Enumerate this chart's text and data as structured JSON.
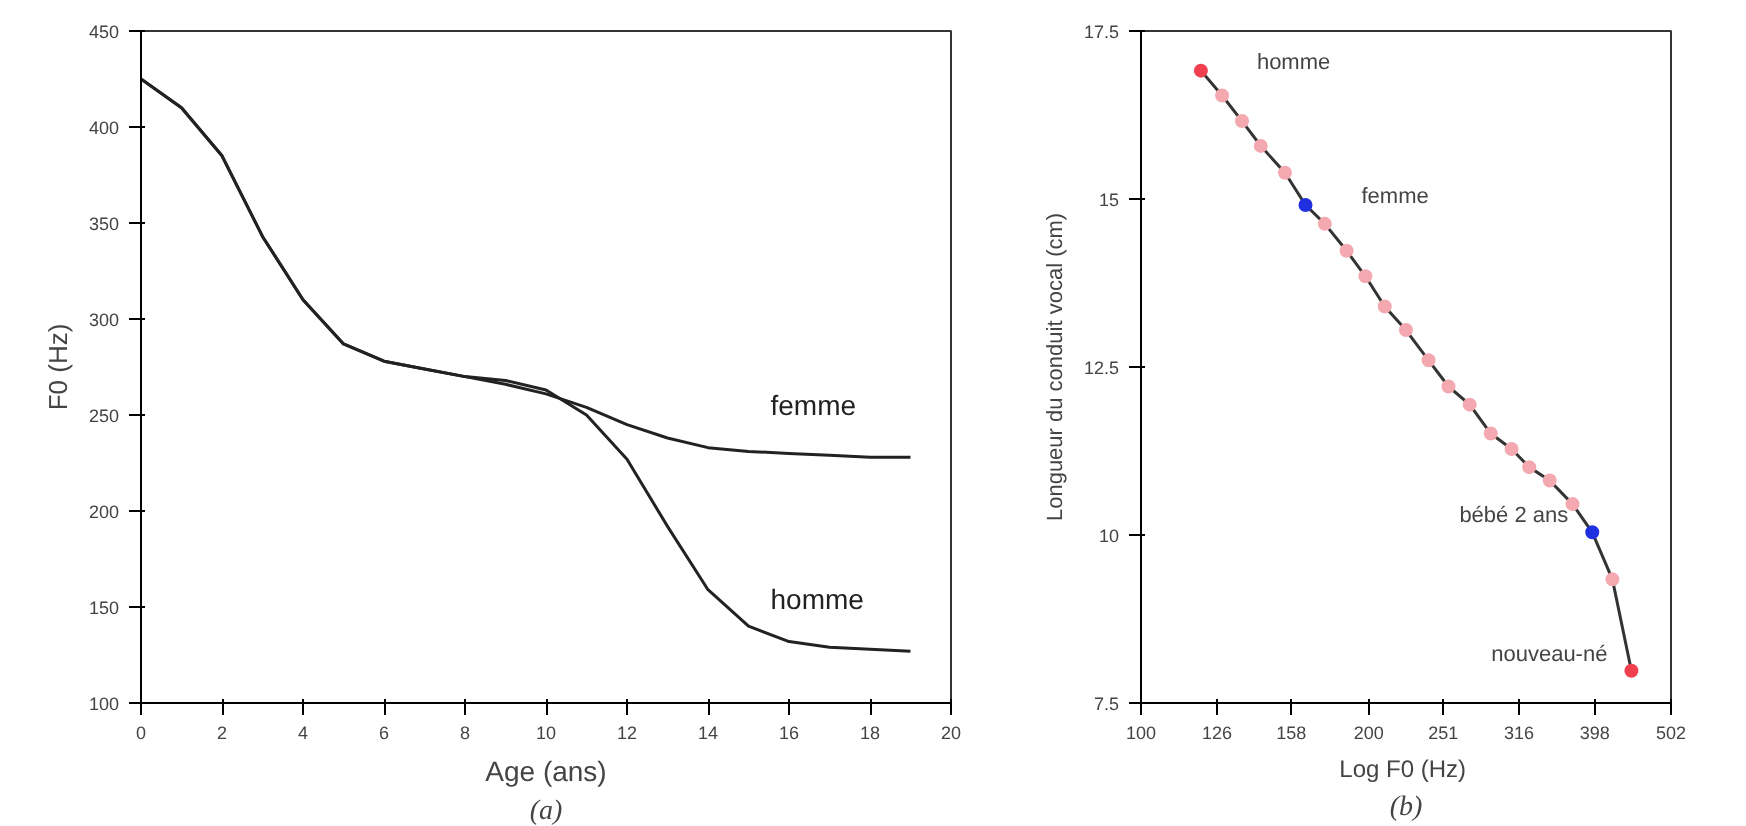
{
  "chart_data": [
    {
      "type": "line",
      "xlabel": "Age (ans)",
      "ylabel": "F0 (Hz)",
      "xlim": [
        0,
        20
      ],
      "ylim": [
        100,
        450
      ],
      "xticks": [
        0,
        2,
        4,
        6,
        8,
        10,
        12,
        14,
        16,
        18,
        20
      ],
      "yticks": [
        100,
        150,
        200,
        250,
        300,
        350,
        400,
        450
      ],
      "grid": false,
      "marker": "none",
      "line_style": "solid",
      "x": [
        0,
        1,
        2,
        3,
        4,
        5,
        6,
        7,
        8,
        9,
        10,
        11,
        12,
        13,
        14,
        15,
        16,
        17,
        18,
        19
      ],
      "series": [
        {
          "name": "femme",
          "color": "#222222",
          "values": [
            425,
            410,
            385,
            343,
            310,
            287,
            278,
            274,
            270,
            266,
            261,
            254,
            245,
            238,
            233,
            231,
            230,
            229,
            228,
            228
          ]
        },
        {
          "name": "homme",
          "color": "#222222",
          "values": [
            425,
            410,
            385,
            343,
            310,
            287,
            278,
            274,
            270,
            268,
            263,
            250,
            227,
            192,
            159,
            140,
            132,
            129,
            128,
            127
          ]
        }
      ],
      "annotations": [
        "(a)"
      ]
    },
    {
      "type": "line",
      "xlabel": "Log F0  (Hz)",
      "ylabel": "Longueur du conduit vocal (cm)",
      "log": "x",
      "xlim": [
        100,
        502
      ],
      "ylim": [
        7.5,
        17.5
      ],
      "xticks": [
        100,
        126,
        158,
        200,
        251,
        316,
        398,
        502
      ],
      "yticks": [
        7.5,
        10,
        12.5,
        15,
        17.5
      ],
      "grid": false,
      "marker": "circle",
      "line_style": "solid",
      "x": [
        120,
        128,
        136,
        144,
        155,
        165,
        175,
        187,
        198,
        210,
        224,
        240,
        255,
        272,
        290,
        309,
        326,
        347,
        372,
        395,
        420,
        445
      ],
      "series": [
        {
          "color": "#333333",
          "values": [
            16.91,
            16.54,
            16.16,
            15.79,
            15.39,
            14.91,
            14.63,
            14.23,
            13.85,
            13.4,
            13.05,
            12.6,
            12.21,
            11.94,
            11.51,
            11.28,
            11.01,
            10.81,
            10.46,
            10.04,
            9.34,
            7.98
          ],
          "colors": [
            "#f04050",
            "#f4a8b0",
            "#f4a8b0",
            "#f4a8b0",
            "#f4a8b0",
            "#2030e0",
            "#f4a8b0",
            "#f4a8b0",
            "#f4a8b0",
            "#f4a8b0",
            "#f4a8b0",
            "#f4a8b0",
            "#f4a8b0",
            "#f4a8b0",
            "#f4a8b0",
            "#f4a8b0",
            "#f4a8b0",
            "#f4a8b0",
            "#f4a8b0",
            "#2030e0",
            "#f4a8b0",
            "#f04050"
          ]
        }
      ],
      "annotations": [
        {
          "text": "homme",
          "x": 120,
          "y": 16.91
        },
        {
          "text": "femme",
          "x": 165,
          "y": 14.91
        },
        {
          "text": "bébé 2 ans",
          "x": 395,
          "y": 10.04
        },
        {
          "text": "nouveau-né",
          "x": 445,
          "y": 7.98
        },
        "(b)"
      ]
    }
  ]
}
